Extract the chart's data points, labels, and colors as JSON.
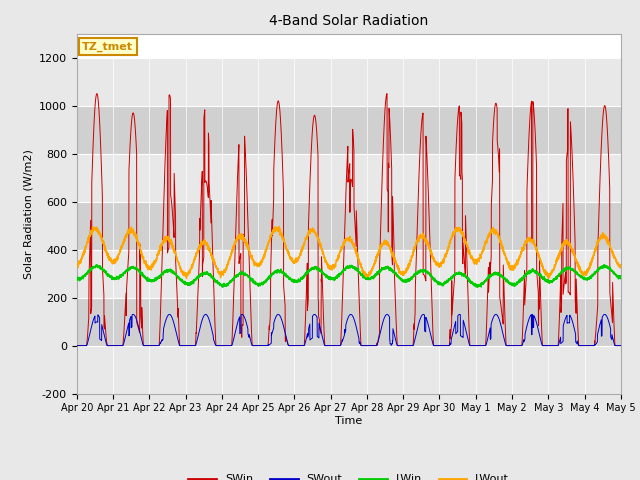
{
  "title": "4-Band Solar Radiation",
  "ylabel": "Solar Radiation (W/m2)",
  "xlabel": "Time",
  "ylim": [
    -200,
    1300
  ],
  "yticks": [
    -200,
    0,
    200,
    400,
    600,
    800,
    1000,
    1200
  ],
  "x_tick_labels": [
    "Apr 20",
    "Apr 21",
    "Apr 22",
    "Apr 23",
    "Apr 24",
    "Apr 25",
    "Apr 26",
    "Apr 27",
    "Apr 28",
    "Apr 29",
    "Apr 30",
    "May 1",
    "May 2",
    "May 3",
    "May 4",
    "May 5"
  ],
  "colors": {
    "SWin": "#cc0000",
    "SWout": "#0000cc",
    "LWin": "#00cc00",
    "LWout": "#ffa500"
  },
  "annotation_text": "TZ_tmet",
  "annotation_bg": "#ffffcc",
  "annotation_border": "#cc8800",
  "fig_bg": "#e8e8e8",
  "plot_bg": "#ffffff",
  "band_light": "#e8e8e8",
  "band_dark": "#d0d0d0",
  "grid_color": "#ffffff",
  "n_days": 15,
  "points_per_day": 288
}
